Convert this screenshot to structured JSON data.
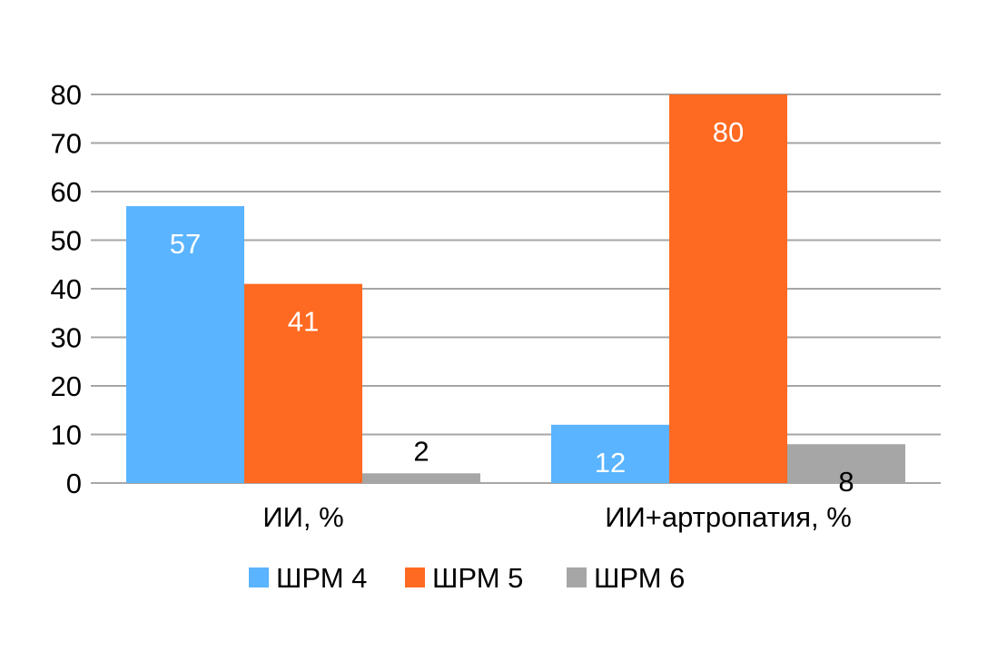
{
  "chart_data": {
    "type": "bar",
    "categories": [
      "ИИ, %",
      "ИИ+артропатия, %"
    ],
    "series": [
      {
        "name": "ШРМ 4",
        "color": "#5ab4ff",
        "values": [
          57,
          12
        ],
        "label_color": "#ffffff"
      },
      {
        "name": "ШРМ 5",
        "color": "#ff6a22",
        "values": [
          41,
          80
        ],
        "label_color": "#ffffff"
      },
      {
        "name": "ШРМ 6",
        "color": "#a6a6a6",
        "values": [
          2,
          8
        ],
        "label_color": "#000000"
      }
    ],
    "data_labels": [
      [
        "57",
        "12"
      ],
      [
        "41",
        "80"
      ],
      [
        "2",
        "8"
      ]
    ],
    "yticks": [
      "0",
      "10",
      "20",
      "30",
      "40",
      "50",
      "60",
      "70",
      "80"
    ],
    "ylim": [
      0,
      80
    ],
    "grid": true,
    "legend": "bottom",
    "title": "",
    "xlabel": "",
    "ylabel": ""
  }
}
